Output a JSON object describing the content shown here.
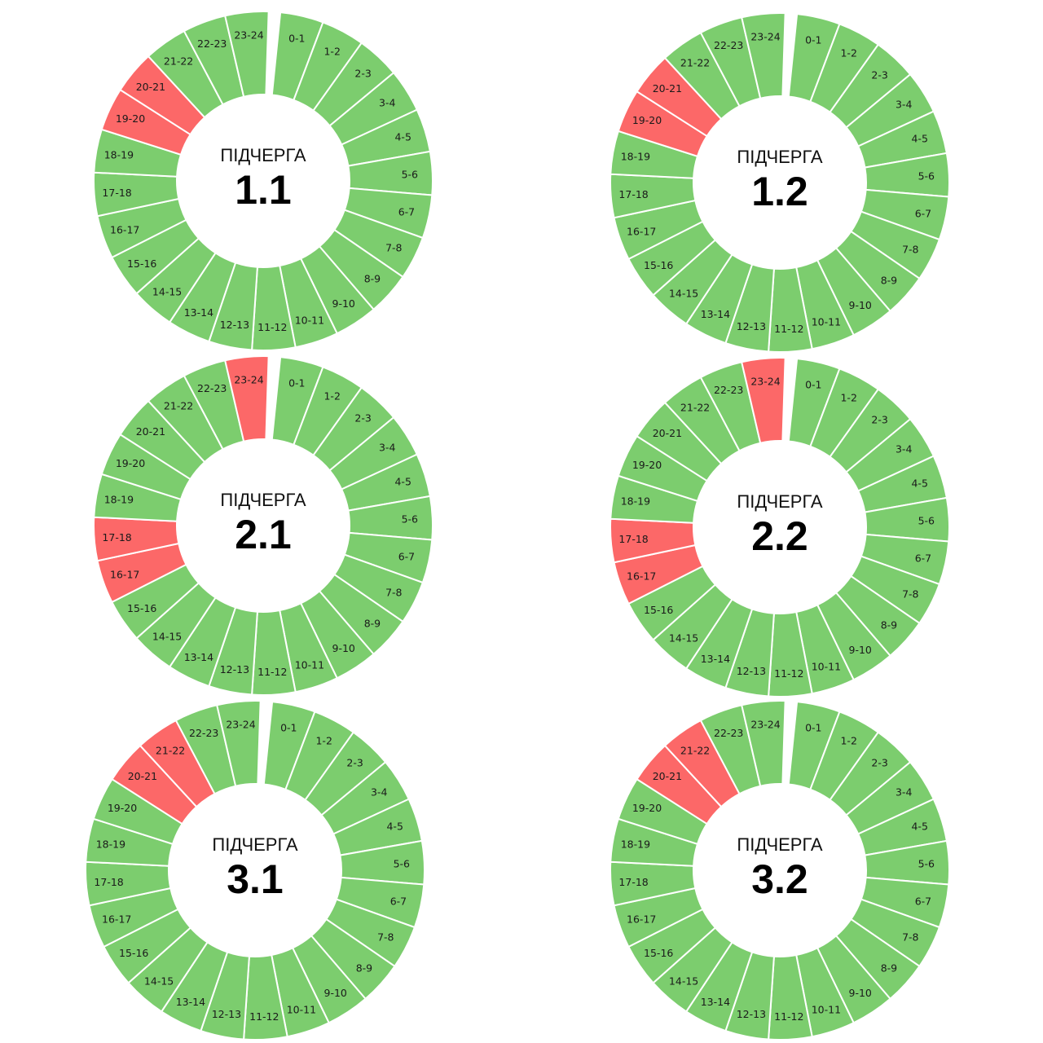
{
  "colors": {
    "on": "#7ccd6e",
    "off": "#fc6868",
    "gap": "#ffffff"
  },
  "chart_data": [
    {
      "type": "pie",
      "caption": "ПІДЧЕРГА",
      "number": "1.1",
      "categories": [
        "0-1",
        "1-2",
        "2-3",
        "3-4",
        "4-5",
        "5-6",
        "6-7",
        "7-8",
        "8-9",
        "9-10",
        "10-11",
        "11-12",
        "12-13",
        "13-14",
        "14-15",
        "15-16",
        "16-17",
        "17-18",
        "18-19",
        "19-20",
        "20-21",
        "21-22",
        "22-23",
        "23-24"
      ],
      "outage": [
        0,
        0,
        0,
        0,
        0,
        0,
        0,
        0,
        0,
        0,
        0,
        0,
        0,
        0,
        0,
        0,
        0,
        0,
        0,
        1,
        1,
        0,
        0,
        0
      ]
    },
    {
      "type": "pie",
      "caption": "ПІДЧЕРГА",
      "number": "1.2",
      "categories": [
        "0-1",
        "1-2",
        "2-3",
        "3-4",
        "4-5",
        "5-6",
        "6-7",
        "7-8",
        "8-9",
        "9-10",
        "10-11",
        "11-12",
        "12-13",
        "13-14",
        "14-15",
        "15-16",
        "16-17",
        "17-18",
        "18-19",
        "19-20",
        "20-21",
        "21-22",
        "22-23",
        "23-24"
      ],
      "outage": [
        0,
        0,
        0,
        0,
        0,
        0,
        0,
        0,
        0,
        0,
        0,
        0,
        0,
        0,
        0,
        0,
        0,
        0,
        0,
        1,
        1,
        0,
        0,
        0
      ]
    },
    {
      "type": "pie",
      "caption": "ПІДЧЕРГА",
      "number": "2.1",
      "categories": [
        "0-1",
        "1-2",
        "2-3",
        "3-4",
        "4-5",
        "5-6",
        "6-7",
        "7-8",
        "8-9",
        "9-10",
        "10-11",
        "11-12",
        "12-13",
        "13-14",
        "14-15",
        "15-16",
        "16-17",
        "17-18",
        "18-19",
        "19-20",
        "20-21",
        "21-22",
        "22-23",
        "23-24"
      ],
      "outage": [
        0,
        0,
        0,
        0,
        0,
        0,
        0,
        0,
        0,
        0,
        0,
        0,
        0,
        0,
        0,
        0,
        1,
        1,
        0,
        0,
        0,
        0,
        0,
        1
      ]
    },
    {
      "type": "pie",
      "caption": "ПІДЧЕРГА",
      "number": "2.2",
      "categories": [
        "0-1",
        "1-2",
        "2-3",
        "3-4",
        "4-5",
        "5-6",
        "6-7",
        "7-8",
        "8-9",
        "9-10",
        "10-11",
        "11-12",
        "12-13",
        "13-14",
        "14-15",
        "15-16",
        "16-17",
        "17-18",
        "18-19",
        "19-20",
        "20-21",
        "21-22",
        "22-23",
        "23-24"
      ],
      "outage": [
        0,
        0,
        0,
        0,
        0,
        0,
        0,
        0,
        0,
        0,
        0,
        0,
        0,
        0,
        0,
        0,
        1,
        1,
        0,
        0,
        0,
        0,
        0,
        1
      ]
    },
    {
      "type": "pie",
      "caption": "ПІДЧЕРГА",
      "number": "3.1",
      "categories": [
        "0-1",
        "1-2",
        "2-3",
        "3-4",
        "4-5",
        "5-6",
        "6-7",
        "7-8",
        "8-9",
        "9-10",
        "10-11",
        "11-12",
        "12-13",
        "13-14",
        "14-15",
        "15-16",
        "16-17",
        "17-18",
        "18-19",
        "19-20",
        "20-21",
        "21-22",
        "22-23",
        "23-24"
      ],
      "outage": [
        0,
        0,
        0,
        0,
        0,
        0,
        0,
        0,
        0,
        0,
        0,
        0,
        0,
        0,
        0,
        0,
        0,
        0,
        0,
        0,
        1,
        1,
        0,
        0
      ]
    },
    {
      "type": "pie",
      "caption": "ПІДЧЕРГА",
      "number": "3.2",
      "categories": [
        "0-1",
        "1-2",
        "2-3",
        "3-4",
        "4-5",
        "5-6",
        "6-7",
        "7-8",
        "8-9",
        "9-10",
        "10-11",
        "11-12",
        "12-13",
        "13-14",
        "14-15",
        "15-16",
        "16-17",
        "17-18",
        "18-19",
        "19-20",
        "20-21",
        "21-22",
        "22-23",
        "23-24"
      ],
      "outage": [
        0,
        0,
        0,
        0,
        0,
        0,
        0,
        0,
        0,
        0,
        0,
        0,
        0,
        0,
        0,
        0,
        0,
        0,
        0,
        0,
        1,
        1,
        0,
        0
      ]
    }
  ]
}
